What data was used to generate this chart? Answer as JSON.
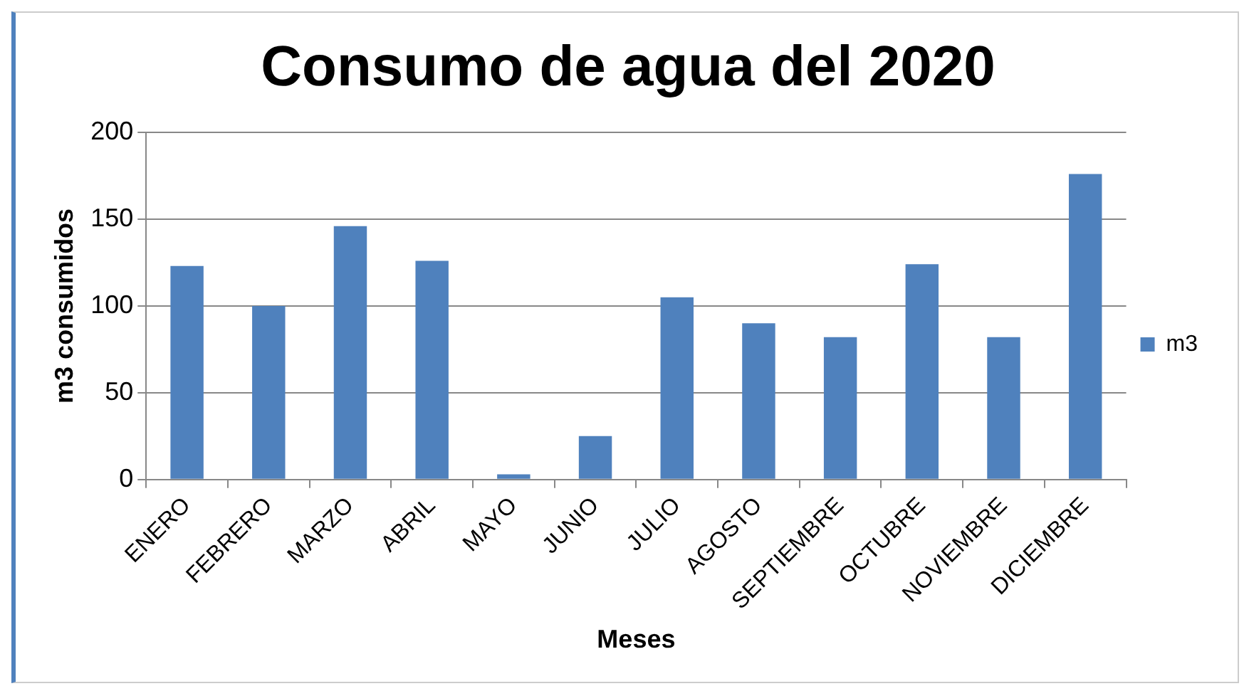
{
  "chart_data": {
    "type": "bar",
    "title": "Consumo de agua del 2020",
    "xlabel": "Meses",
    "ylabel": "m3 consumidos",
    "categories": [
      "ENERO",
      "FEBRERO",
      "MARZO",
      "ABRIL",
      "MAYO",
      "JUNIO",
      "JULIO",
      "AGOSTO",
      "SEPTIEMBRE",
      "OCTUBRE",
      "NOVIEMBRE",
      "DICIEMBRE"
    ],
    "series": [
      {
        "name": "m3",
        "color": "#4f81bd",
        "values": [
          123,
          100,
          146,
          126,
          3,
          25,
          105,
          90,
          82,
          124,
          82,
          176
        ]
      }
    ],
    "ylim": [
      0,
      200
    ],
    "yticks": [
      0,
      50,
      100,
      150,
      200
    ],
    "grid": "y",
    "legend": "right"
  }
}
